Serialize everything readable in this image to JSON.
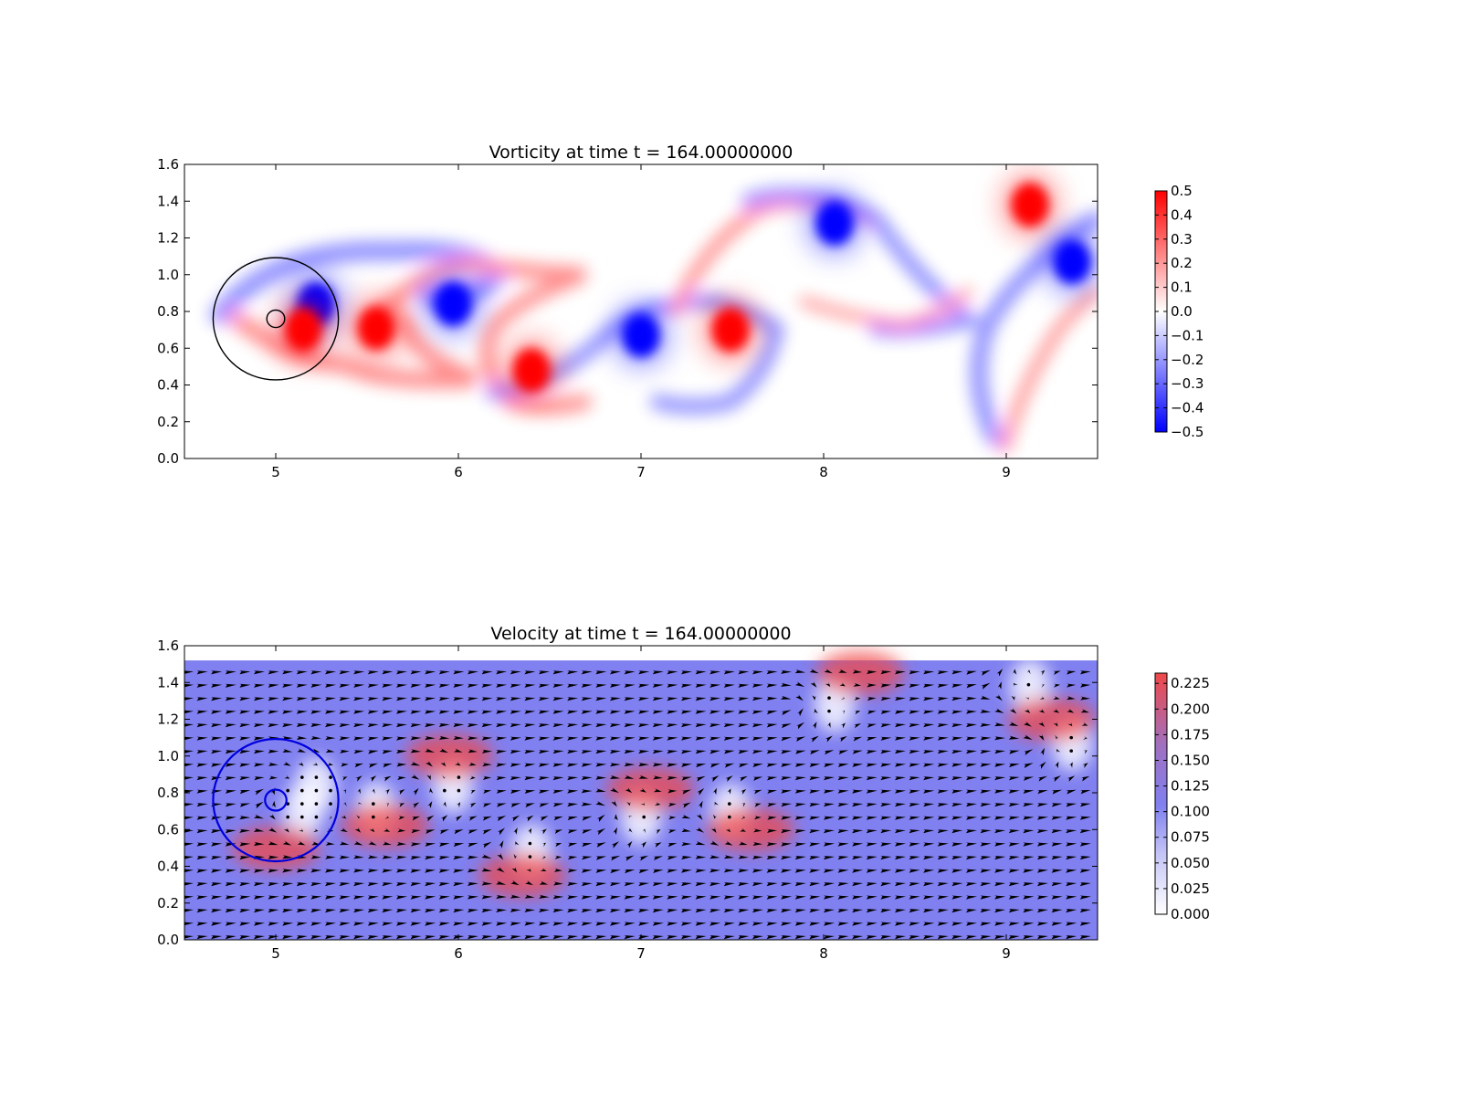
{
  "chart_data": [
    {
      "type": "heatmap",
      "title": "Vorticity at time t =    164.00000000",
      "xlabel": "",
      "ylabel": "",
      "xlim": [
        4.5,
        9.5
      ],
      "ylim": [
        0.0,
        1.6
      ],
      "xticks": [
        "5",
        "6",
        "7",
        "8",
        "9"
      ],
      "yticks": [
        "0.0",
        "0.2",
        "0.4",
        "0.6",
        "0.8",
        "1.0",
        "1.2",
        "1.4",
        "1.6"
      ],
      "grid": false,
      "colormap": "bwr",
      "colors": {
        "negative": "#0000ff",
        "zero": "#ffffff",
        "positive": "#ff0000"
      },
      "colorbar": {
        "range": [
          -0.5,
          0.5
        ],
        "ticks": [
          "0.5",
          "0.4",
          "0.3",
          "0.2",
          "0.1",
          "0.0",
          "−0.1",
          "−0.2",
          "−0.3",
          "−0.4",
          "−0.5"
        ]
      },
      "vortices": [
        {
          "x": 5.22,
          "y": 0.84,
          "sign": -1,
          "strength": 0.5
        },
        {
          "x": 5.15,
          "y": 0.7,
          "sign": 1,
          "strength": 0.5
        },
        {
          "x": 5.55,
          "y": 0.71,
          "sign": 1,
          "strength": 0.5
        },
        {
          "x": 5.97,
          "y": 0.84,
          "sign": -1,
          "strength": 0.5
        },
        {
          "x": 6.4,
          "y": 0.48,
          "sign": 1,
          "strength": 0.5
        },
        {
          "x": 7.0,
          "y": 0.67,
          "sign": -1,
          "strength": 0.5
        },
        {
          "x": 7.49,
          "y": 0.7,
          "sign": 1,
          "strength": 0.5
        },
        {
          "x": 8.06,
          "y": 1.28,
          "sign": -1,
          "strength": 0.5
        },
        {
          "x": 9.13,
          "y": 1.38,
          "sign": 1,
          "strength": 0.5
        },
        {
          "x": 9.36,
          "y": 1.07,
          "sign": -1,
          "strength": 0.5
        }
      ],
      "annotations": [
        {
          "shape": "circle",
          "x": 5.0,
          "y": 0.76,
          "r": 0.35,
          "color": "#000000"
        },
        {
          "shape": "circle",
          "x": 5.0,
          "y": 0.76,
          "r": 0.05,
          "color": "#000000"
        }
      ]
    },
    {
      "type": "heatmap",
      "title": "Velocity at time t =    164.00000000",
      "xlabel": "",
      "ylabel": "",
      "xlim": [
        4.5,
        9.5
      ],
      "ylim": [
        0.0,
        1.6
      ],
      "xticks": [
        "5",
        "6",
        "7",
        "8",
        "9"
      ],
      "yticks": [
        "0.0",
        "0.2",
        "0.4",
        "0.6",
        "0.8",
        "1.0",
        "1.2",
        "1.4",
        "1.6"
      ],
      "grid": false,
      "colormap": "white-blue-red",
      "colors": {
        "low": "#ffffff",
        "mid": "#8080f0",
        "high": "#f04848",
        "arrows": "#000000"
      },
      "data_ymax": 1.52,
      "colorbar": {
        "range": [
          0.0,
          0.235
        ],
        "ticks": [
          "0.225",
          "0.200",
          "0.175",
          "0.150",
          "0.125",
          "0.100",
          "0.075",
          "0.050",
          "0.025",
          "0.000"
        ]
      },
      "annotations": [
        {
          "shape": "circle",
          "x": 5.0,
          "y": 0.76,
          "r": 0.35,
          "color": "#0000dd"
        },
        {
          "shape": "circle",
          "x": 5.0,
          "y": 0.76,
          "r": 0.06,
          "color": "#0000dd"
        }
      ]
    }
  ]
}
